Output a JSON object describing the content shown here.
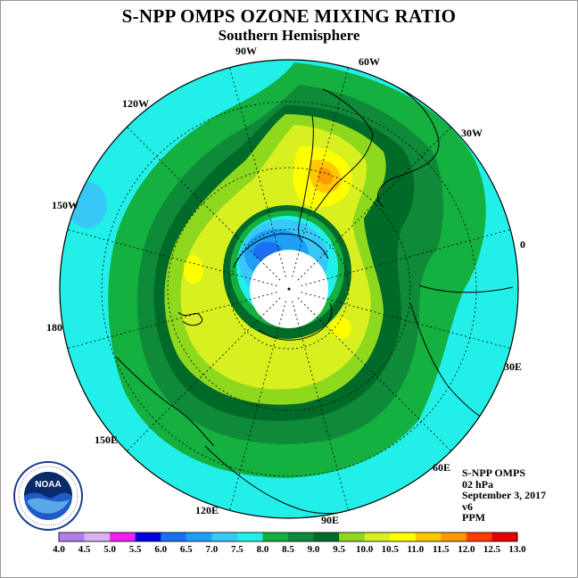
{
  "title": "S-NPP OMPS OZONE MIXING RATIO",
  "subtitle": "Southern Hemisphere",
  "longitude_labels": {
    "lon_90w": "90W",
    "lon_60w": "60W",
    "lon_30w": "30W",
    "lon_0": "0",
    "lon_30e": "30E",
    "lon_60e": "60E",
    "lon_90e": "90E",
    "lon_120e": "120E",
    "lon_150e": "150E",
    "lon_180": "180",
    "lon_150w": "150W",
    "lon_120w": "120W"
  },
  "info": {
    "instrument": "S-NPP OMPS",
    "level": "02 hPa",
    "date": "September 3, 2017",
    "version": "v6",
    "units": "PPM"
  },
  "logo": {
    "text": "NOAA",
    "ring_text": "NATIONAL OCEANIC AND ATMOSPHERIC ADMINISTRATION · U.S. DEPARTMENT OF COMMERCE"
  },
  "colorbar": {
    "ticks": [
      "4.0",
      "4.5",
      "5.0",
      "5.5",
      "6.0",
      "6.5",
      "7.0",
      "7.5",
      "8.0",
      "8.5",
      "9.0",
      "9.5",
      "10.0",
      "10.5",
      "11.0",
      "11.5",
      "12.0",
      "12.5",
      "13.0"
    ],
    "colors": [
      "#b07ee8",
      "#d9b0f0",
      "#f020f0",
      "#0000e0",
      "#1a70f0",
      "#1e9ef5",
      "#38c8f8",
      "#22f0e8",
      "#14b040",
      "#0e8a38",
      "#006a28",
      "#8ed81e",
      "#d8f020",
      "#ffff00",
      "#ffc800",
      "#ff9a00",
      "#ff3c00",
      "#e60000",
      "#8a5a3a"
    ]
  },
  "chart_data": {
    "type": "heatmap",
    "title": "S-NPP OMPS OZONE MIXING RATIO",
    "subtitle": "Southern Hemisphere",
    "projection": "south polar stereographic",
    "units": "PPM",
    "pressure_level": "02 hPa",
    "date": "September 3, 2017",
    "color_levels": [
      4.0,
      4.5,
      5.0,
      5.5,
      6.0,
      6.5,
      7.0,
      7.5,
      8.0,
      8.5,
      9.0,
      9.5,
      10.0,
      10.5,
      11.0,
      11.5,
      12.0,
      12.5,
      13.0
    ],
    "field_structure": [
      {
        "range": "7.5-8.0",
        "region": "outer mid-latitudes"
      },
      {
        "range": "8.0-8.5",
        "region": "outer ring"
      },
      {
        "range": "8.5-9.0",
        "region": "ring"
      },
      {
        "range": "9.0-9.5",
        "region": "ring"
      },
      {
        "range": "9.5-10.0",
        "region": "broad band around pole"
      },
      {
        "range": "10.0-10.5",
        "region": "local maxima"
      },
      {
        "range": "10.5-11.5",
        "region": "maximum near Antarctic Peninsula"
      },
      {
        "range": "6.0-7.5",
        "region": "low inside polar vortex"
      },
      {
        "range": "no data",
        "region": "polar cap"
      }
    ]
  }
}
